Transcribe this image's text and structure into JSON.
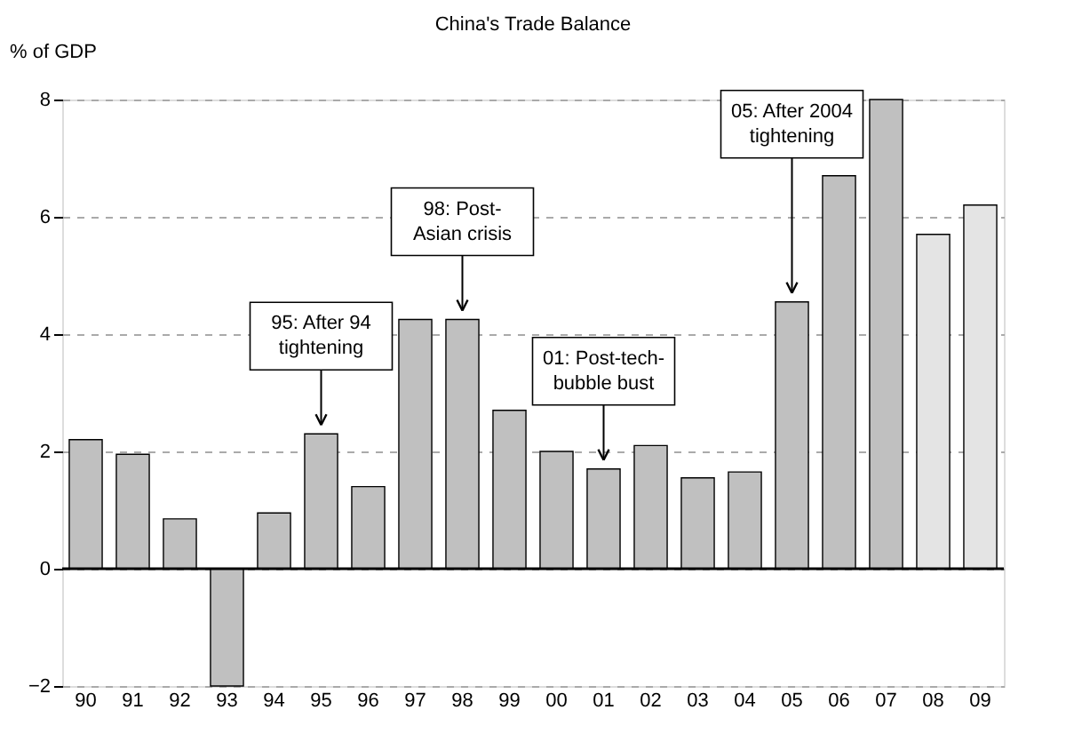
{
  "chart_data": {
    "type": "bar",
    "title": "China's Trade Balance",
    "ylabel": "% of GDP",
    "categories": [
      "90",
      "91",
      "92",
      "93",
      "94",
      "95",
      "96",
      "97",
      "98",
      "99",
      "00",
      "01",
      "02",
      "03",
      "04",
      "05",
      "06",
      "07",
      "08",
      "09"
    ],
    "values": [
      2.2,
      1.95,
      0.85,
      -2.0,
      0.95,
      2.3,
      1.4,
      4.25,
      4.25,
      2.7,
      2.0,
      1.7,
      2.1,
      1.55,
      1.65,
      4.55,
      6.7,
      8.0,
      5.7,
      6.2
    ],
    "colors": [
      "#c0c0c0",
      "#c0c0c0",
      "#c0c0c0",
      "#c0c0c0",
      "#c0c0c0",
      "#c0c0c0",
      "#c0c0c0",
      "#c0c0c0",
      "#c0c0c0",
      "#c0c0c0",
      "#c0c0c0",
      "#c0c0c0",
      "#c0c0c0",
      "#c0c0c0",
      "#c0c0c0",
      "#c0c0c0",
      "#c0c0c0",
      "#c0c0c0",
      "#e4e4e4",
      "#e4e4e4"
    ],
    "ylim": [
      -2,
      8
    ],
    "yticks": [
      -2,
      0,
      2,
      4,
      6,
      8
    ],
    "grid": "y",
    "ref_lines": [
      {
        "axis": "y",
        "value": 0,
        "color": "#000000"
      }
    ],
    "annotations": [
      {
        "text": "95: After 94\ntightening",
        "x": "95",
        "y": 2.3
      },
      {
        "text": "98: Post-\nAsian crisis",
        "x": "98",
        "y": 4.25
      },
      {
        "text": "01: Post-tech-\nbubble bust",
        "x": "01",
        "y": 1.7
      },
      {
        "text": "05: After 2004\ntightening",
        "x": "05",
        "y": 4.55
      }
    ]
  }
}
